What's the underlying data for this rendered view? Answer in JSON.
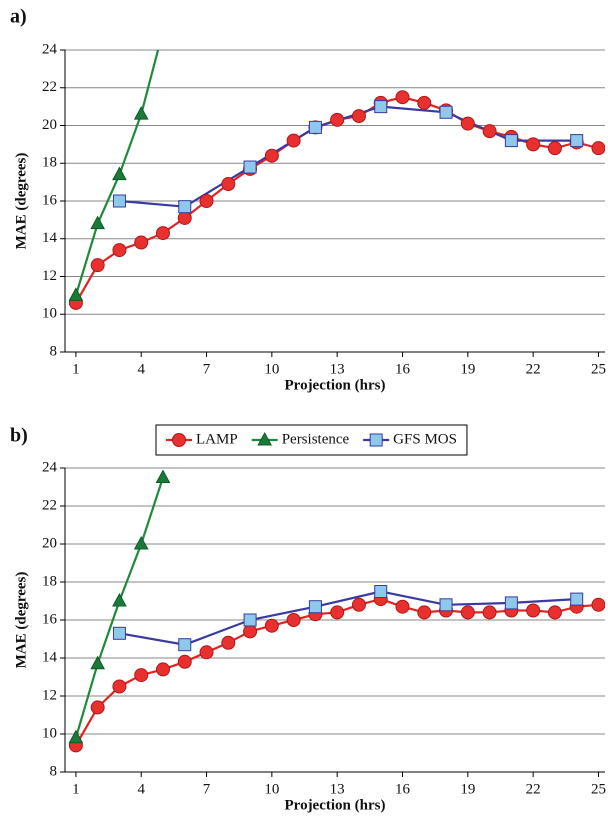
{
  "chart_data": [
    {
      "type": "line",
      "panel_label": "a)",
      "x_label": "Projection (hrs)",
      "y_label": "MAE (degrees)",
      "xlim": [
        0.5,
        25.3
      ],
      "ylim": [
        8,
        24
      ],
      "xticks": [
        1,
        4,
        7,
        10,
        13,
        16,
        19,
        22,
        25
      ],
      "yticks": [
        8,
        10,
        12,
        14,
        16,
        18,
        20,
        22,
        24
      ],
      "grid": true,
      "series": [
        {
          "color": "#e02424",
          "marker": "circle",
          "x": [
            1,
            2,
            3,
            4,
            5,
            6,
            7,
            8,
            9,
            10,
            11,
            12,
            13,
            14,
            15,
            16,
            17,
            18,
            19,
            20,
            21,
            22,
            23,
            24,
            25
          ],
          "values": [
            10.6,
            12.6,
            13.4,
            13.8,
            14.3,
            15.1,
            16.0,
            16.9,
            17.7,
            18.4,
            19.2,
            19.9,
            20.3,
            20.5,
            21.2,
            21.5,
            21.2,
            20.8,
            20.1,
            19.7,
            19.4,
            19.0,
            18.8,
            19.1,
            18.8
          ]
        },
        {
          "color": "#1e8a3a",
          "marker": "triangle",
          "x": [
            1,
            2,
            3,
            4,
            5
          ],
          "values": [
            11.0,
            14.8,
            17.4,
            20.6,
            25.0
          ]
        },
        {
          "color": "#3a3aa0",
          "marker": "square",
          "x": [
            3,
            6,
            9,
            12,
            15,
            18,
            21,
            24
          ],
          "values": [
            16.0,
            15.7,
            17.8,
            19.9,
            21.0,
            20.7,
            19.2,
            19.2
          ]
        }
      ]
    },
    {
      "type": "line",
      "panel_label": "b)",
      "x_label": "Projection (hrs)",
      "y_label": "MAE (degrees)",
      "xlim": [
        0.5,
        25.3
      ],
      "ylim": [
        8,
        24
      ],
      "xticks": [
        1,
        4,
        7,
        10,
        13,
        16,
        19,
        22,
        25
      ],
      "yticks": [
        8,
        10,
        12,
        14,
        16,
        18,
        20,
        22,
        24
      ],
      "grid": true,
      "series": [
        {
          "name": "LAMP",
          "color": "#e02424",
          "marker": "circle",
          "x": [
            1,
            2,
            3,
            4,
            5,
            6,
            7,
            8,
            9,
            10,
            11,
            12,
            13,
            14,
            15,
            16,
            17,
            18,
            19,
            20,
            21,
            22,
            23,
            24,
            25
          ],
          "values": [
            9.4,
            11.4,
            12.5,
            13.1,
            13.4,
            13.8,
            14.3,
            14.8,
            15.4,
            15.7,
            16.0,
            16.3,
            16.4,
            16.8,
            17.1,
            16.7,
            16.4,
            16.5,
            16.4,
            16.4,
            16.5,
            16.5,
            16.4,
            16.7,
            16.8
          ]
        },
        {
          "name": "Persistence",
          "color": "#1e8a3a",
          "marker": "triangle",
          "x": [
            1,
            2,
            3,
            4,
            5
          ],
          "values": [
            9.8,
            13.7,
            17.0,
            20.0,
            23.5
          ]
        },
        {
          "name": "GFS MOS",
          "color": "#3a3aa0",
          "marker": "square",
          "x": [
            3,
            6,
            9,
            12,
            15,
            18,
            21,
            24
          ],
          "values": [
            15.3,
            14.7,
            16.0,
            16.7,
            17.5,
            16.8,
            16.9,
            17.1
          ]
        }
      ]
    }
  ]
}
